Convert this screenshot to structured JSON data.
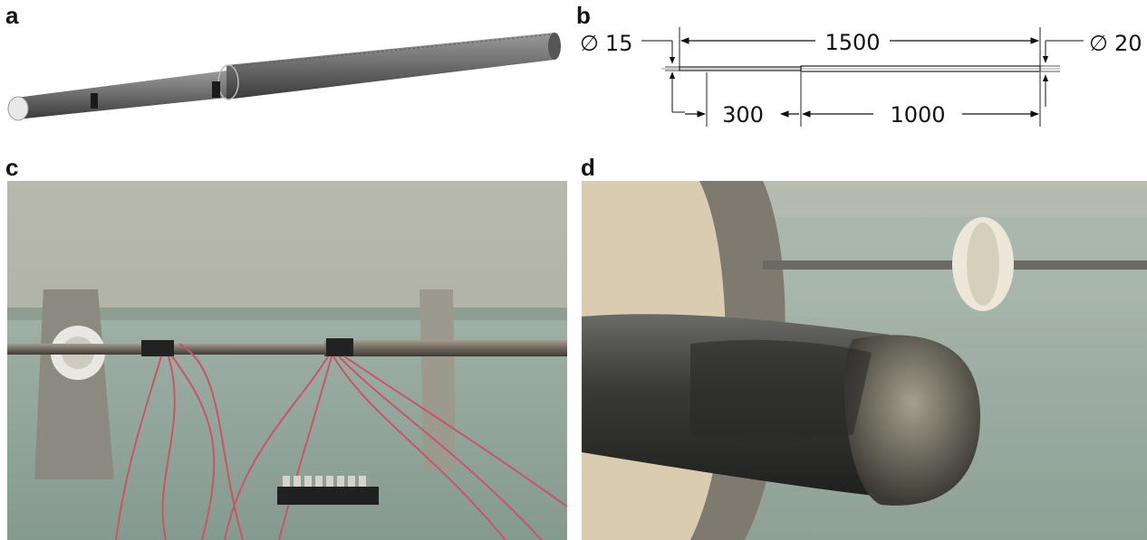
{
  "figure": {
    "panels": [
      {
        "label": "a",
        "content": "3D rendering of stepped shaft"
      },
      {
        "label": "b",
        "content": "dimensioned drawing"
      },
      {
        "label": "c",
        "content": "photo of experimental rig"
      },
      {
        "label": "d",
        "content": "close-up photo of shaft end"
      }
    ]
  },
  "drawing_b": {
    "dia_left_symbol": "∅",
    "dia_left_value": "15",
    "dia_right_symbol": "∅",
    "dia_right_value": "20",
    "total_length": "1500",
    "left_segment": "300",
    "right_segment": "1000"
  },
  "colors": {
    "shaft": "#6f6f6f",
    "rig_bg": "#b9bdb0",
    "table": "#93a49a",
    "wire": "#c9546a"
  }
}
